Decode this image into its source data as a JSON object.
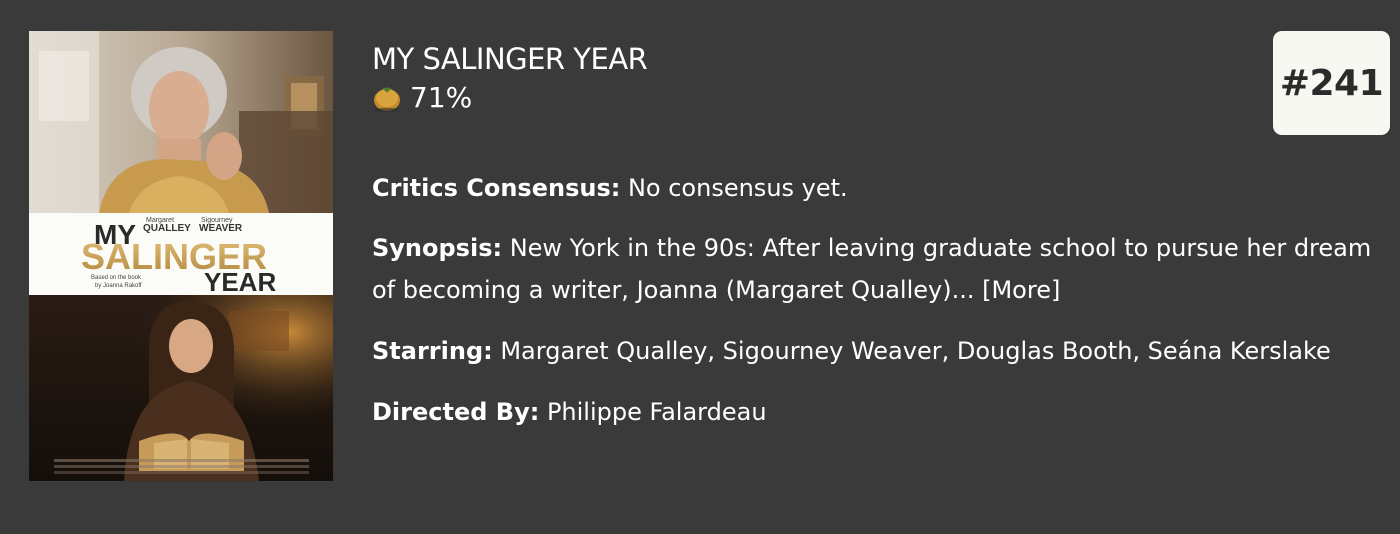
{
  "poster": {
    "actor_left_first": "Margaret",
    "actor_left_last": "QUALLEY",
    "actor_right_first": "Sigourney",
    "actor_right_last": "WEAVER",
    "title_my": "MY",
    "title_salinger": "SALINGER",
    "title_year": "YEAR",
    "based_on_line1": "Based on the book",
    "based_on_line2": "by Joanna Rakoff"
  },
  "movie": {
    "title": "MY SALINGER YEAR",
    "score_icon": "tomato-score-icon",
    "score": "71%",
    "rank": "#241",
    "consensus_label": "Critics Consensus:",
    "consensus_text": " No consensus yet.",
    "synopsis_label": "Synopsis:",
    "synopsis_text": " New York in the 90s: After leaving graduate school to pursue her dream of becoming a writer, Joanna (Margaret Qualley)... ",
    "more_label": "[More]",
    "starring_label": "Starring:",
    "starring_text": " Margaret Qualley, Sigourney Weaver, Douglas Booth, Seána Kerslake",
    "director_label": "Directed By:",
    "director_text": " Philippe Falardeau"
  },
  "colors": {
    "background": "#3a3a3a",
    "text": "#ffffff",
    "badge_bg": "#f8f8f3",
    "badge_text": "#2b2b2b",
    "poster_gold": "#c9a15a"
  }
}
